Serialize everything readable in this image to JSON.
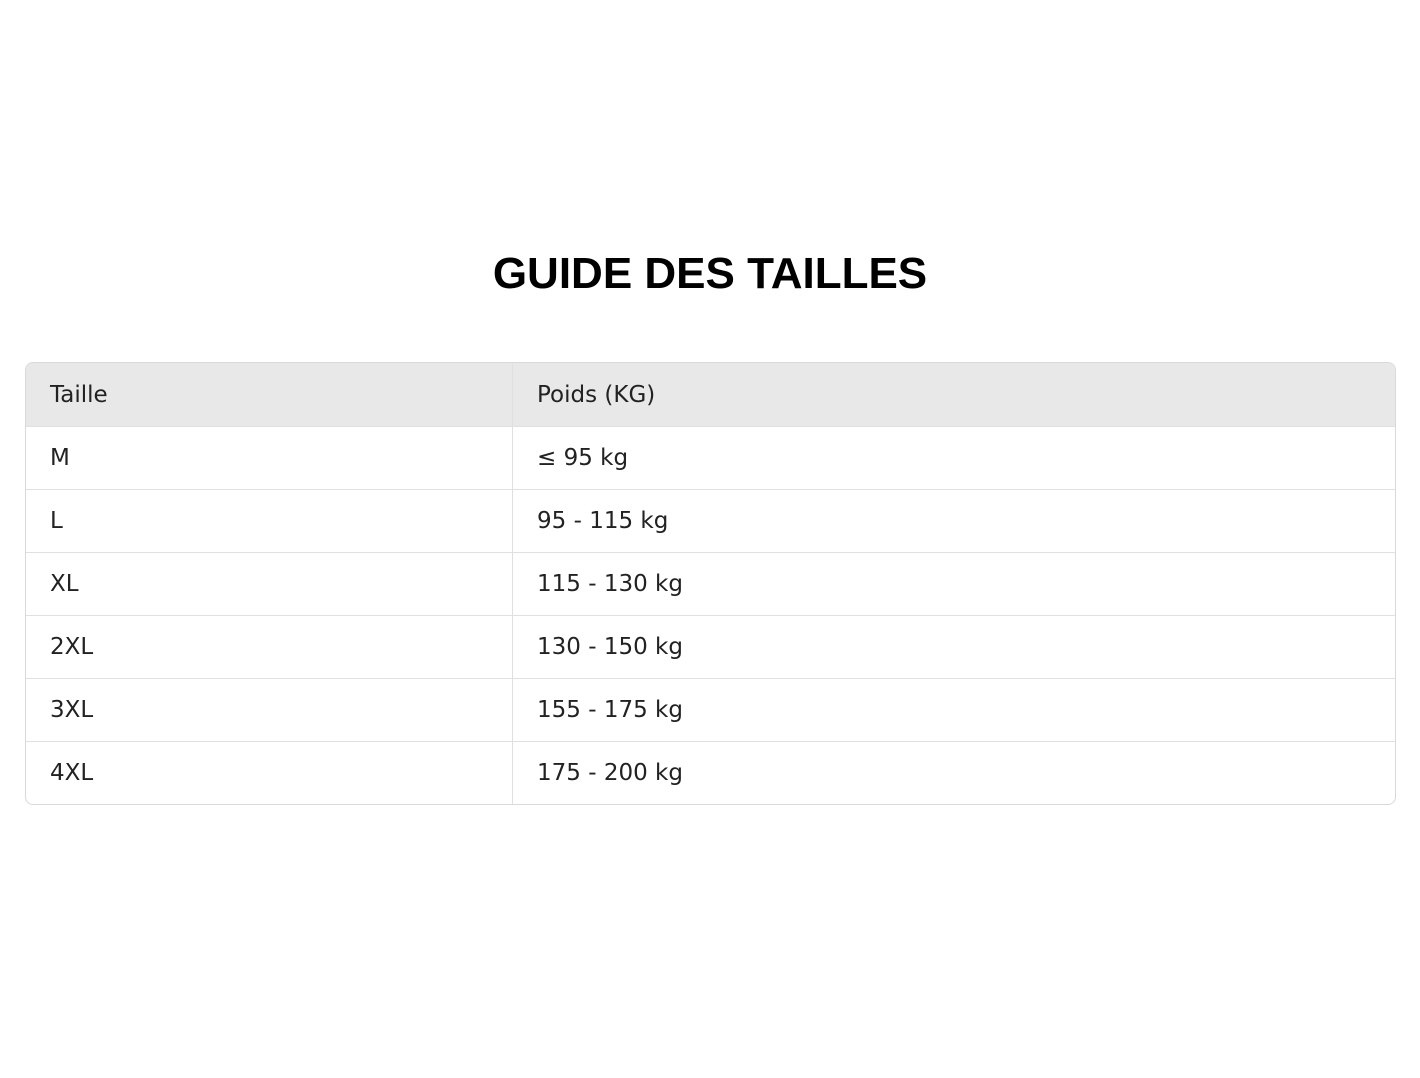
{
  "title": "GUIDE DES TAILLES",
  "table": {
    "headers": [
      "Taille",
      "Poids (KG)"
    ],
    "rows": [
      [
        "M",
        "≤ 95 kg"
      ],
      [
        "L",
        "95 - 115 kg"
      ],
      [
        "XL",
        "115 - 130 kg"
      ],
      [
        "2XL",
        "130 - 150 kg"
      ],
      [
        "3XL",
        "155 - 175 kg"
      ],
      [
        "4XL",
        "175 - 200 kg"
      ]
    ]
  }
}
